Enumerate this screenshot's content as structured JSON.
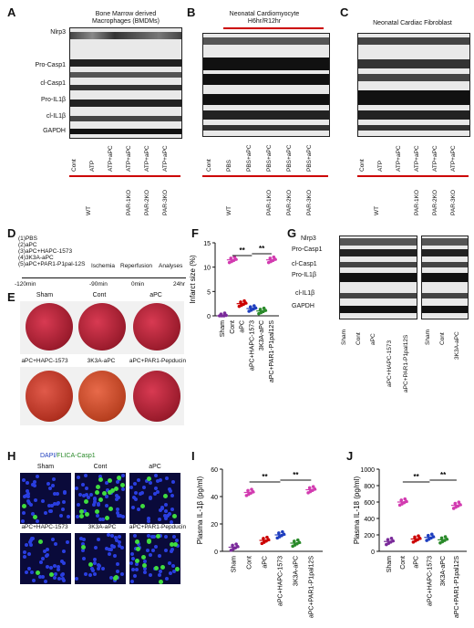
{
  "panel_letters": [
    "A",
    "B",
    "C",
    "D",
    "E",
    "F",
    "G",
    "H",
    "I",
    "J"
  ],
  "panelA": {
    "title_lines": [
      "Bone Marrow derived",
      "Macrophages (BMDMs)"
    ],
    "row_labels": [
      "Nlrp3",
      "Pro-Casp1",
      "cl-Casp1",
      "Pro-IL1β",
      "cl-IL1β",
      "GAPDH"
    ],
    "lanes": [
      "Cont",
      "ATP",
      "ATP+aPC",
      "ATP+aPC",
      "ATP+aPC",
      "ATP+aPC"
    ],
    "genotypes": [
      "WT",
      "PAR-1KO",
      "PAR-2KO",
      "PAR-3KO"
    ]
  },
  "panelB": {
    "title_lines": [
      "Neonatal Cardiomyocyte",
      "H6hr/R12hr"
    ],
    "lanes": [
      "Cont",
      "PBS",
      "PBS+aPC",
      "PBS+aPC",
      "PBS+aPC",
      "PBS+aPC"
    ],
    "genotypes": [
      "WT",
      "PAR-1KO",
      "PAR-2KO",
      "PAR-3KO"
    ]
  },
  "panelC": {
    "title_lines": [
      "Neonatal Cardiac Fibroblast"
    ],
    "lanes": [
      "Cont",
      "ATP",
      "ATP+aPC",
      "ATP+aPC",
      "ATP+aPC",
      "ATP+aPC"
    ],
    "genotypes": [
      "WT",
      "PAR-1KO",
      "PAR-2KO",
      "PAR-3KO"
    ]
  },
  "panelD": {
    "groups": [
      "(1)PBS",
      "(2)aPC",
      "(3)aPC+HAPC-1573",
      "(4)3K3A-aPC",
      "(5)aPC+PAR1-P1pal-12S"
    ],
    "events": [
      "Ischemia",
      "Reperfusion",
      "Analyses"
    ],
    "times": [
      "-120min",
      "-90min",
      "0min",
      "24hr"
    ]
  },
  "panelE": {
    "top": [
      "Sham",
      "Cont",
      "aPC"
    ],
    "bottom": [
      "aPC+HAPC-1573",
      "3K3A-aPC",
      "aPC+PAR1-Pepducin"
    ]
  },
  "panelG": {
    "row_labels": [
      "Nlrp3",
      "Pro-Casp1",
      "cl-Casp1",
      "Pro-IL1β",
      "cl-IL1β",
      "GAPDH"
    ],
    "lanes_left": [
      "Sham",
      "Cont",
      "aPC",
      "aPC+HAPC-1573",
      "aPC+PAR1-P1pal12S"
    ],
    "lanes_right": [
      "Sham",
      "Cont",
      "3K3A-aPC"
    ]
  },
  "panelH": {
    "stain_a": "DAPI/",
    "stain_b": "FLICA-Casp1",
    "top": [
      "Sham",
      "Cont",
      "aPC"
    ],
    "bottom": [
      "aPC+HAPC-1573",
      "3K3A-aPC",
      "aPC+PAR1-Pepducin"
    ]
  },
  "colors": {
    "red": "#cc0000",
    "blue": "#1f3fbf",
    "green": "#2a8a2a",
    "purple": "#7a2a9a",
    "magenta": "#d23bb0"
  },
  "chart_data": [
    {
      "panel": "F",
      "type": "scatter",
      "ylabel": "Infarct size (%)",
      "ylim": [
        0,
        15
      ],
      "yticks": [
        0,
        5,
        10,
        15
      ],
      "categories": [
        "Sham",
        "Cont",
        "aPC",
        "aPC+HAPC-1573",
        "3K3A-aPC",
        "aPC+PAR1-P1pal12S"
      ],
      "series": [
        {
          "values": [
            0,
            11.5,
            2.5,
            1.5,
            1.0,
            11.5
          ]
        }
      ],
      "significance": [
        "**",
        "**"
      ]
    },
    {
      "panel": "I",
      "type": "scatter",
      "ylabel": "Plasma IL-1β (pg/ml)",
      "ylim": [
        0,
        60
      ],
      "yticks": [
        0,
        20,
        40,
        60
      ],
      "categories": [
        "Sham",
        "Cont",
        "aPC",
        "aPC+HAPC-1573",
        "3K3A-aPC",
        "aPC+PAR1-P1pal12S"
      ],
      "series": [
        {
          "values": [
            3,
            43,
            8,
            12,
            6,
            45
          ]
        }
      ],
      "significance": [
        "**",
        "**"
      ]
    },
    {
      "panel": "J",
      "type": "scatter",
      "ylabel": "Plasma IL-18 (pg/ml)",
      "ylim": [
        0,
        1000
      ],
      "yticks": [
        0,
        200,
        400,
        600,
        800,
        1000
      ],
      "categories": [
        "Sham",
        "Cont",
        "aPC",
        "aPC+HAPC-1573",
        "3K3A-aPC",
        "aPC+PAR1-P1pal12S"
      ],
      "series": [
        {
          "values": [
            120,
            600,
            150,
            170,
            140,
            560
          ]
        }
      ],
      "significance": [
        "**",
        "**"
      ]
    }
  ]
}
